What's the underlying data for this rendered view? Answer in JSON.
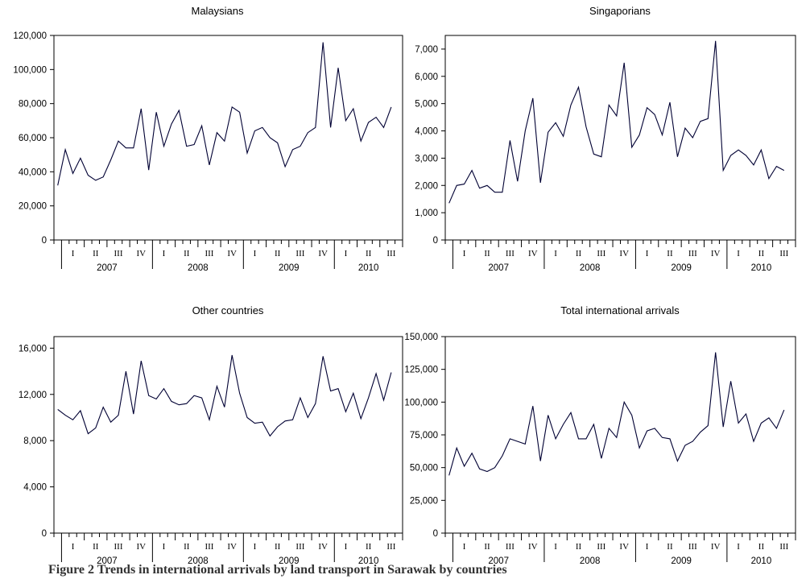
{
  "caption": "Figure 2 Trends in international arrivals by land transport in Sarawak by countries",
  "quarter_labels": [
    "I",
    "II",
    "III",
    "IV"
  ],
  "year_labels": [
    "2007",
    "2008",
    "2009",
    "2010"
  ],
  "chart_data": [
    {
      "type": "line",
      "title": "Malaysians",
      "x_start": "2006-12",
      "x_end": "2010-09",
      "ylim": [
        0,
        120000
      ],
      "yticks": [
        0,
        20000,
        40000,
        60000,
        80000,
        100000,
        120000
      ],
      "ytick_labels": [
        "0",
        "20,000",
        "40,000",
        "60,000",
        "80,000",
        "100,000",
        "120,000"
      ],
      "series": [
        {
          "values": [
            32000,
            53000,
            39000,
            48000,
            38000,
            35000,
            37000,
            47000,
            58000,
            54000,
            54000,
            77000,
            41000,
            75000,
            55000,
            68000,
            76000,
            55000,
            56000,
            67000,
            44000,
            63000,
            58000,
            78000,
            75000,
            51000,
            64000,
            66000,
            60000,
            57000,
            43000,
            53000,
            55000,
            63000,
            66000,
            116000,
            66000,
            101000,
            70000,
            77000,
            58000,
            69000,
            72000,
            66000,
            78000
          ]
        }
      ],
      "color": "#000033"
    },
    {
      "type": "line",
      "title": "Singaporians",
      "x_start": "2006-12",
      "x_end": "2010-09",
      "ylim": [
        0,
        7500
      ],
      "yticks": [
        0,
        1000,
        2000,
        3000,
        4000,
        5000,
        6000,
        7000
      ],
      "ytick_labels": [
        "0",
        "1,000",
        "2,000",
        "3,000",
        "4,000",
        "5,000",
        "6,000",
        "7,000"
      ],
      "series": [
        {
          "values": [
            1350,
            2000,
            2050,
            2550,
            1900,
            2000,
            1750,
            1750,
            3650,
            2150,
            4000,
            5200,
            2100,
            3950,
            4300,
            3800,
            4950,
            5600,
            4150,
            3150,
            3050,
            4950,
            4550,
            6500,
            3400,
            3850,
            4850,
            4600,
            3850,
            5050,
            3050,
            4100,
            3750,
            4350,
            4450,
            7300,
            2550,
            3100,
            3300,
            3100,
            2750,
            3300,
            2250,
            2700,
            2550
          ]
        }
      ],
      "color": "#000033"
    },
    {
      "type": "line",
      "title": "Other countries",
      "x_start": "2006-12",
      "x_end": "2010-09",
      "ylim": [
        0,
        17000
      ],
      "yticks": [
        0,
        4000,
        8000,
        12000,
        16000
      ],
      "ytick_labels": [
        "0",
        "4,000",
        "8,000",
        "12,000",
        "16,000"
      ],
      "series": [
        {
          "values": [
            10700,
            10200,
            9800,
            10600,
            8600,
            9100,
            10900,
            9600,
            10200,
            14000,
            10300,
            14900,
            11900,
            11600,
            12500,
            11400,
            11100,
            11200,
            11900,
            11700,
            9800,
            12700,
            10900,
            15400,
            12100,
            10000,
            9500,
            9600,
            8400,
            9200,
            9700,
            9800,
            11700,
            10000,
            11200,
            15300,
            12300,
            12500,
            10500,
            12100,
            9900,
            11700,
            13800,
            11500,
            13900
          ]
        }
      ],
      "color": "#000033"
    },
    {
      "type": "line",
      "title": "Total international arrivals",
      "x_start": "2006-12",
      "x_end": "2010-09",
      "ylim": [
        0,
        150000
      ],
      "yticks": [
        0,
        25000,
        50000,
        75000,
        100000,
        125000,
        150000
      ],
      "ytick_labels": [
        "0",
        "25,000",
        "50,000",
        "75,000",
        "100,000",
        "125,000",
        "150,000"
      ],
      "series": [
        {
          "values": [
            44000,
            65000,
            51000,
            61000,
            49000,
            47000,
            50000,
            59000,
            72000,
            70000,
            68000,
            97000,
            55000,
            90000,
            72000,
            83000,
            92000,
            72000,
            72000,
            83000,
            57000,
            80000,
            73000,
            100000,
            90000,
            65000,
            78000,
            80000,
            73000,
            72000,
            55000,
            67000,
            70000,
            77000,
            82000,
            138000,
            81000,
            116000,
            84000,
            91000,
            70000,
            84000,
            88000,
            80000,
            94000
          ]
        }
      ],
      "color": "#000033"
    }
  ]
}
